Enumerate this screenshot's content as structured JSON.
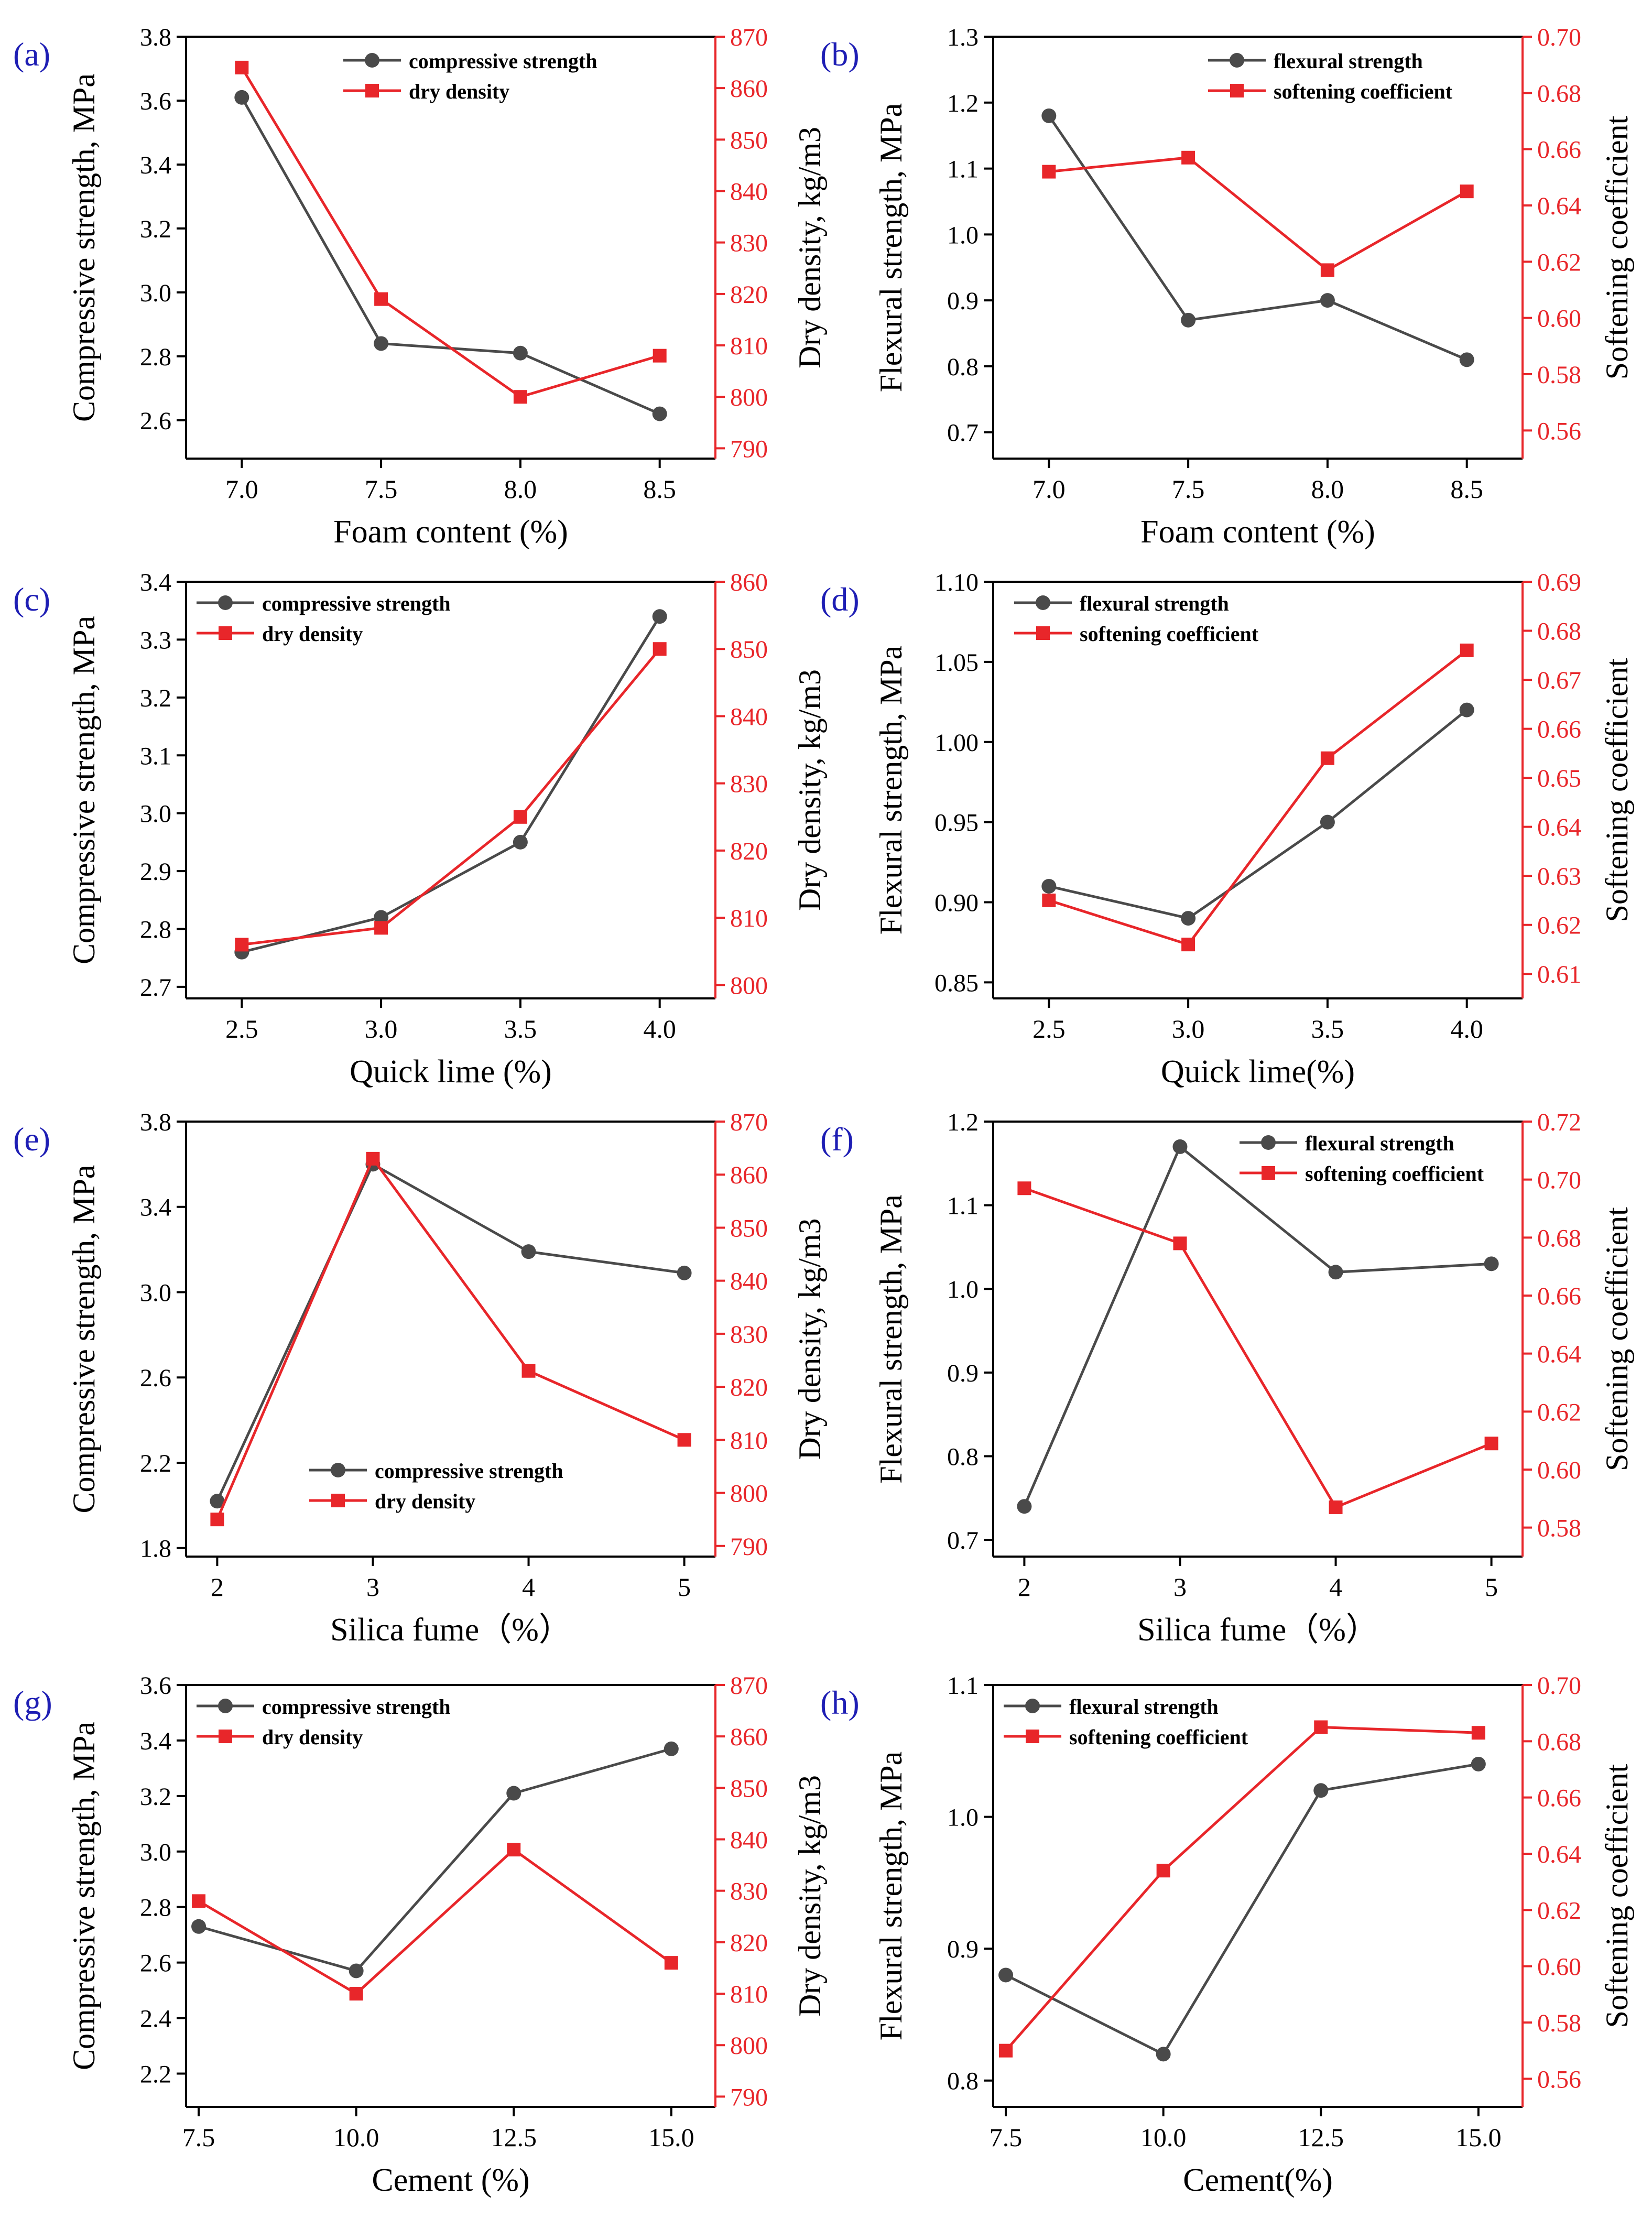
{
  "colors": {
    "series_a": "#4a4a4a",
    "series_b": "#e8262a",
    "axis": "#000000",
    "panel_label": "#1e1eb4"
  },
  "chart_data": [
    {
      "panel": "(a)",
      "type": "line",
      "xlabel": "Foam content (%)",
      "x": [
        7.0,
        7.5,
        8.0,
        8.5
      ],
      "xticks": [
        "7.0",
        "7.5",
        "8.0",
        "8.5"
      ],
      "xlim": [
        6.8,
        8.7
      ],
      "left_axis": {
        "label": "Compressive strength, MPa",
        "ylim": [
          2.48,
          3.8
        ],
        "ticks": [
          "2.6",
          "2.8",
          "3.0",
          "3.2",
          "3.4",
          "3.6",
          "3.8"
        ]
      },
      "right_axis": {
        "label": "Dry density, kg/m3",
        "ylim": [
          788,
          870
        ],
        "ticks": [
          "790",
          "800",
          "810",
          "820",
          "830",
          "840",
          "850",
          "860",
          "870"
        ]
      },
      "series": [
        {
          "name": "compressive strength",
          "axis": "left",
          "marker": "circle",
          "values": [
            3.61,
            2.84,
            2.81,
            2.62
          ]
        },
        {
          "name": "dry density",
          "axis": "right",
          "marker": "square",
          "values": [
            864,
            819,
            800,
            808
          ]
        }
      ],
      "legend": "top-center"
    },
    {
      "panel": "(b)",
      "type": "line",
      "xlabel": "Foam content (%)",
      "x": [
        7.0,
        7.5,
        8.0,
        8.5
      ],
      "xticks": [
        "7.0",
        "7.5",
        "8.0",
        "8.5"
      ],
      "xlim": [
        6.8,
        8.7
      ],
      "left_axis": {
        "label": "Flexural strength, MPa",
        "ylim": [
          0.66,
          1.3
        ],
        "ticks": [
          "0.7",
          "0.8",
          "0.9",
          "1.0",
          "1.1",
          "1.2",
          "1.3"
        ]
      },
      "right_axis": {
        "label": "Softening coefficient",
        "ylim": [
          0.55,
          0.7
        ],
        "ticks": [
          "0.56",
          "0.58",
          "0.60",
          "0.62",
          "0.64",
          "0.66",
          "0.68",
          "0.70"
        ]
      },
      "series": [
        {
          "name": "flexural strength",
          "axis": "left",
          "marker": "circle",
          "values": [
            1.18,
            0.87,
            0.9,
            0.81
          ]
        },
        {
          "name": "softening coefficient",
          "axis": "right",
          "marker": "square",
          "values": [
            0.652,
            0.657,
            0.617,
            0.645
          ]
        }
      ],
      "legend": "top-right"
    },
    {
      "panel": "(c)",
      "type": "line",
      "xlabel": "Quick lime (%)",
      "x": [
        2.5,
        3.0,
        3.5,
        4.0
      ],
      "xticks": [
        "2.5",
        "3.0",
        "3.5",
        "4.0"
      ],
      "xlim": [
        2.3,
        4.2
      ],
      "left_axis": {
        "label": "Compressive strength, MPa",
        "ylim": [
          2.68,
          3.4
        ],
        "ticks": [
          "2.7",
          "2.8",
          "2.9",
          "3.0",
          "3.1",
          "3.2",
          "3.3",
          "3.4"
        ]
      },
      "right_axis": {
        "label": "Dry density, kg/m3",
        "ylim": [
          798,
          860
        ],
        "ticks": [
          "800",
          "810",
          "820",
          "830",
          "840",
          "850",
          "860"
        ]
      },
      "series": [
        {
          "name": "compressive strength",
          "axis": "left",
          "marker": "circle",
          "values": [
            2.76,
            2.82,
            2.95,
            3.34
          ]
        },
        {
          "name": "dry density",
          "axis": "right",
          "marker": "square",
          "values": [
            806,
            808.5,
            825,
            850
          ]
        }
      ],
      "legend": "top-left"
    },
    {
      "panel": "(d)",
      "type": "line",
      "xlabel": "Quick lime(%)",
      "x": [
        2.5,
        3.0,
        3.5,
        4.0
      ],
      "xticks": [
        "2.5",
        "3.0",
        "3.5",
        "4.0"
      ],
      "xlim": [
        2.3,
        4.2
      ],
      "left_axis": {
        "label": "Flexural strength, MPa",
        "ylim": [
          0.84,
          1.1
        ],
        "ticks": [
          "0.85",
          "0.90",
          "0.95",
          "1.00",
          "1.05",
          "1.10"
        ]
      },
      "right_axis": {
        "label": "Softening coefficient",
        "ylim": [
          0.605,
          0.69
        ],
        "ticks": [
          "0.61",
          "0.62",
          "0.63",
          "0.64",
          "0.65",
          "0.66",
          "0.67",
          "0.68",
          "0.69"
        ]
      },
      "series": [
        {
          "name": "flexural strength",
          "axis": "left",
          "marker": "circle",
          "values": [
            0.91,
            0.89,
            0.95,
            1.02
          ]
        },
        {
          "name": "softening coefficient",
          "axis": "right",
          "marker": "square",
          "values": [
            0.625,
            0.616,
            0.654,
            0.676
          ]
        }
      ],
      "legend": "top-left"
    },
    {
      "panel": "(e)",
      "type": "line",
      "xlabel": "Silica fume（%）",
      "x": [
        2,
        3,
        4,
        5
      ],
      "xticks": [
        "2",
        "3",
        "4",
        "5"
      ],
      "xlim": [
        1.8,
        5.2
      ],
      "left_axis": {
        "label": "Compressive strength, MPa",
        "ylim": [
          1.76,
          3.8
        ],
        "ticks": [
          "1.8",
          "2.2",
          "2.6",
          "3.0",
          "3.4",
          "3.8"
        ]
      },
      "right_axis": {
        "label": "Dry density, kg/m3",
        "ylim": [
          788,
          870
        ],
        "ticks": [
          "790",
          "800",
          "810",
          "820",
          "830",
          "840",
          "850",
          "860",
          "870"
        ]
      },
      "series": [
        {
          "name": "compressive strength",
          "axis": "left",
          "marker": "circle",
          "values": [
            2.02,
            3.6,
            3.19,
            3.09
          ]
        },
        {
          "name": "dry density",
          "axis": "right",
          "marker": "square",
          "values": [
            795,
            863,
            823,
            810
          ]
        }
      ],
      "legend": "bottom-center"
    },
    {
      "panel": "(f)",
      "type": "line",
      "xlabel": "Silica fume（%）",
      "x": [
        2,
        3,
        4,
        5
      ],
      "xticks": [
        "2",
        "3",
        "4",
        "5"
      ],
      "xlim": [
        1.8,
        5.2
      ],
      "left_axis": {
        "label": "Flexural strength, MPa",
        "ylim": [
          0.68,
          1.2
        ],
        "ticks": [
          "0.7",
          "0.8",
          "0.9",
          "1.0",
          "1.1",
          "1.2"
        ]
      },
      "right_axis": {
        "label": "Softening coefficient",
        "ylim": [
          0.57,
          0.72
        ],
        "ticks": [
          "0.58",
          "0.60",
          "0.62",
          "0.64",
          "0.66",
          "0.68",
          "0.70",
          "0.72"
        ]
      },
      "series": [
        {
          "name": "flexural strength",
          "axis": "left",
          "marker": "circle",
          "values": [
            0.74,
            1.17,
            1.02,
            1.03
          ]
        },
        {
          "name": "softening coefficient",
          "axis": "right",
          "marker": "square",
          "values": [
            0.697,
            0.678,
            0.587,
            0.609
          ]
        }
      ],
      "legend": "top-right"
    },
    {
      "panel": "(g)",
      "type": "line",
      "xlabel": "Cement (%)",
      "x": [
        7.5,
        10.0,
        12.5,
        15.0
      ],
      "xticks": [
        "7.5",
        "10.0",
        "12.5",
        "15.0"
      ],
      "xlim": [
        7.3,
        15.7
      ],
      "left_axis": {
        "label": "Compressive strength, MPa",
        "ylim": [
          2.08,
          3.6
        ],
        "ticks": [
          "2.2",
          "2.4",
          "2.6",
          "2.8",
          "3.0",
          "3.2",
          "3.4",
          "3.6"
        ]
      },
      "right_axis": {
        "label": "Dry density, kg/m3",
        "ylim": [
          788,
          870
        ],
        "ticks": [
          "790",
          "800",
          "810",
          "820",
          "830",
          "840",
          "850",
          "860",
          "870"
        ]
      },
      "series": [
        {
          "name": "compressive strength",
          "axis": "left",
          "marker": "circle",
          "values": [
            2.73,
            2.57,
            3.21,
            3.37
          ]
        },
        {
          "name": "dry density",
          "axis": "right",
          "marker": "square",
          "values": [
            828,
            810,
            838,
            816
          ]
        }
      ],
      "legend": "top-left"
    },
    {
      "panel": "(h)",
      "type": "line",
      "xlabel": "Cement(%)",
      "x": [
        7.5,
        10.0,
        12.5,
        15.0
      ],
      "xticks": [
        "7.5",
        "10.0",
        "12.5",
        "15.0"
      ],
      "xlim": [
        7.3,
        15.7
      ],
      "left_axis": {
        "label": "Flexural strength, MPa",
        "ylim": [
          0.78,
          1.1
        ],
        "ticks": [
          "0.8",
          "0.9",
          "1.0",
          "1.1"
        ]
      },
      "right_axis": {
        "label": "Softening coefficient",
        "ylim": [
          0.55,
          0.7
        ],
        "ticks": [
          "0.56",
          "0.58",
          "0.60",
          "0.62",
          "0.64",
          "0.66",
          "0.68",
          "0.70"
        ]
      },
      "series": [
        {
          "name": "flexural strength",
          "axis": "left",
          "marker": "circle",
          "values": [
            0.88,
            0.82,
            1.02,
            1.04
          ]
        },
        {
          "name": "softening coefficient",
          "axis": "right",
          "marker": "square",
          "values": [
            0.57,
            0.634,
            0.685,
            0.683
          ]
        }
      ],
      "legend": "top-left"
    }
  ]
}
